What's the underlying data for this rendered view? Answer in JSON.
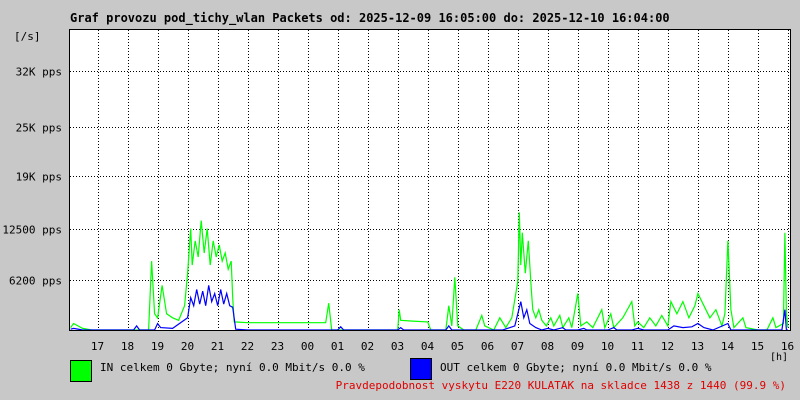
{
  "title": "Graf provozu pod_tichy_wlan Packets od: 2025-12-09 16:05:00 do: 2025-12-10 16:04:00",
  "legend": {
    "in_text": "IN celkem 0 Gbyte; nyní   0.0 Mbit/s 0.0 %",
    "out_text": "OUT celkem 0 Gbyte; nyní   0.0 Mbit/s 0.0 %",
    "in_color": "#00ff00",
    "out_color": "#0000ff"
  },
  "probability_text": "Pravdepodobnost vyskytu E220 KULATAK na skladce 1438 z 1440 (99.9 %)",
  "colors": {
    "background": "#c8c8c8",
    "plot": "#ffffff",
    "grid": "#000000",
    "probability": "#e00000"
  },
  "chart_data": {
    "type": "line",
    "ylabel": "[/s]",
    "xlabel": "[h]",
    "ylim": [
      0,
      37000
    ],
    "yticks": [
      {
        "value": 6200,
        "label": "6200 pps"
      },
      {
        "value": 12500,
        "label": "12500 pps"
      },
      {
        "value": 19000,
        "label": "19K pps"
      },
      {
        "value": 25000,
        "label": "25K pps"
      },
      {
        "value": 32000,
        "label": "32K pps"
      }
    ],
    "xlim": [
      16.08,
      40.07
    ],
    "xticks": [
      {
        "value": 17,
        "label": "17"
      },
      {
        "value": 18,
        "label": "18"
      },
      {
        "value": 19,
        "label": "19"
      },
      {
        "value": 20,
        "label": "20"
      },
      {
        "value": 21,
        "label": "21"
      },
      {
        "value": 22,
        "label": "22"
      },
      {
        "value": 23,
        "label": "23"
      },
      {
        "value": 24,
        "label": "00"
      },
      {
        "value": 25,
        "label": "01"
      },
      {
        "value": 26,
        "label": "02"
      },
      {
        "value": 27,
        "label": "03"
      },
      {
        "value": 28,
        "label": "04"
      },
      {
        "value": 29,
        "label": "05"
      },
      {
        "value": 30,
        "label": "06"
      },
      {
        "value": 31,
        "label": "07"
      },
      {
        "value": 32,
        "label": "08"
      },
      {
        "value": 33,
        "label": "09"
      },
      {
        "value": 34,
        "label": "10"
      },
      {
        "value": 35,
        "label": "11"
      },
      {
        "value": 36,
        "label": "12"
      },
      {
        "value": 37,
        "label": "13"
      },
      {
        "value": 38,
        "label": "14"
      },
      {
        "value": 39,
        "label": "15"
      },
      {
        "value": 40,
        "label": "16"
      }
    ],
    "grid": true,
    "series": [
      {
        "name": "IN",
        "color": "#00ff00",
        "points": [
          [
            16.1,
            300
          ],
          [
            16.2,
            800
          ],
          [
            16.5,
            200
          ],
          [
            16.8,
            0
          ],
          [
            17.5,
            0
          ],
          [
            18.2,
            0
          ],
          [
            18.7,
            0
          ],
          [
            18.8,
            8500
          ],
          [
            18.9,
            2000
          ],
          [
            19.0,
            1500
          ],
          [
            19.15,
            5500
          ],
          [
            19.3,
            2000
          ],
          [
            19.5,
            1500
          ],
          [
            19.7,
            1200
          ],
          [
            19.9,
            3000
          ],
          [
            20.0,
            7000
          ],
          [
            20.1,
            12500
          ],
          [
            20.15,
            8000
          ],
          [
            20.25,
            11000
          ],
          [
            20.35,
            9000
          ],
          [
            20.45,
            13500
          ],
          [
            20.55,
            9500
          ],
          [
            20.65,
            12500
          ],
          [
            20.75,
            8000
          ],
          [
            20.85,
            11000
          ],
          [
            20.95,
            9000
          ],
          [
            21.05,
            10500
          ],
          [
            21.15,
            8500
          ],
          [
            21.25,
            9500
          ],
          [
            21.35,
            7500
          ],
          [
            21.45,
            8500
          ],
          [
            21.5,
            4000
          ],
          [
            21.55,
            1000
          ],
          [
            22.0,
            900
          ],
          [
            23.0,
            900
          ],
          [
            24.0,
            900
          ],
          [
            24.6,
            900
          ],
          [
            24.7,
            3300
          ],
          [
            24.8,
            0
          ],
          [
            25.5,
            0
          ],
          [
            26.5,
            0
          ],
          [
            27.0,
            0
          ],
          [
            27.05,
            2500
          ],
          [
            27.1,
            1200
          ],
          [
            27.5,
            1100
          ],
          [
            28.0,
            1000
          ],
          [
            28.1,
            0
          ],
          [
            28.6,
            0
          ],
          [
            28.7,
            3000
          ],
          [
            28.8,
            500
          ],
          [
            28.9,
            6500
          ],
          [
            29.0,
            500
          ],
          [
            29.2,
            0
          ],
          [
            29.6,
            0
          ],
          [
            29.8,
            1800
          ],
          [
            29.9,
            500
          ],
          [
            30.2,
            0
          ],
          [
            30.4,
            1500
          ],
          [
            30.6,
            300
          ],
          [
            30.8,
            1500
          ],
          [
            31.0,
            6000
          ],
          [
            31.05,
            14500
          ],
          [
            31.1,
            8000
          ],
          [
            31.15,
            12000
          ],
          [
            31.25,
            7000
          ],
          [
            31.35,
            11000
          ],
          [
            31.45,
            5000
          ],
          [
            31.5,
            2500
          ],
          [
            31.6,
            1500
          ],
          [
            31.7,
            2500
          ],
          [
            31.8,
            1200
          ],
          [
            31.95,
            500
          ],
          [
            32.1,
            1500
          ],
          [
            32.2,
            500
          ],
          [
            32.4,
            1800
          ],
          [
            32.5,
            300
          ],
          [
            32.7,
            1500
          ],
          [
            32.8,
            300
          ],
          [
            33.0,
            4500
          ],
          [
            33.1,
            500
          ],
          [
            33.3,
            1000
          ],
          [
            33.5,
            300
          ],
          [
            33.8,
            2500
          ],
          [
            33.9,
            300
          ],
          [
            34.1,
            2000
          ],
          [
            34.2,
            300
          ],
          [
            34.5,
            1500
          ],
          [
            34.8,
            3500
          ],
          [
            34.9,
            500
          ],
          [
            35.0,
            1000
          ],
          [
            35.2,
            300
          ],
          [
            35.4,
            1500
          ],
          [
            35.6,
            500
          ],
          [
            35.8,
            1800
          ],
          [
            36.0,
            500
          ],
          [
            36.1,
            3500
          ],
          [
            36.3,
            2000
          ],
          [
            36.5,
            3500
          ],
          [
            36.7,
            1500
          ],
          [
            36.9,
            3000
          ],
          [
            37.0,
            4500
          ],
          [
            37.2,
            3000
          ],
          [
            37.4,
            1500
          ],
          [
            37.6,
            2500
          ],
          [
            37.8,
            500
          ],
          [
            37.9,
            2000
          ],
          [
            38.0,
            11000
          ],
          [
            38.1,
            2500
          ],
          [
            38.2,
            300
          ],
          [
            38.5,
            1500
          ],
          [
            38.6,
            300
          ],
          [
            39.0,
            0
          ],
          [
            39.3,
            0
          ],
          [
            39.5,
            1500
          ],
          [
            39.6,
            300
          ],
          [
            39.85,
            800
          ],
          [
            39.9,
            12000
          ],
          [
            39.95,
            2000
          ],
          [
            40.0,
            300
          ]
        ]
      },
      {
        "name": "OUT",
        "color": "#0000ff",
        "points": [
          [
            16.1,
            100
          ],
          [
            16.2,
            200
          ],
          [
            16.5,
            0
          ],
          [
            18.2,
            0
          ],
          [
            18.3,
            500
          ],
          [
            18.4,
            0
          ],
          [
            18.9,
            0
          ],
          [
            19.0,
            800
          ],
          [
            19.1,
            300
          ],
          [
            19.5,
            200
          ],
          [
            20.0,
            1500
          ],
          [
            20.1,
            4000
          ],
          [
            20.2,
            3000
          ],
          [
            20.3,
            5000
          ],
          [
            20.4,
            3200
          ],
          [
            20.5,
            4800
          ],
          [
            20.6,
            3000
          ],
          [
            20.7,
            5500
          ],
          [
            20.8,
            3500
          ],
          [
            20.9,
            4500
          ],
          [
            21.0,
            3000
          ],
          [
            21.1,
            5000
          ],
          [
            21.2,
            3200
          ],
          [
            21.3,
            4500
          ],
          [
            21.4,
            3000
          ],
          [
            21.5,
            2800
          ],
          [
            21.6,
            100
          ],
          [
            22.0,
            0
          ],
          [
            24.0,
            0
          ],
          [
            25.0,
            0
          ],
          [
            25.1,
            400
          ],
          [
            25.2,
            0
          ],
          [
            27.0,
            0
          ],
          [
            27.1,
            300
          ],
          [
            27.2,
            0
          ],
          [
            28.6,
            0
          ],
          [
            28.7,
            500
          ],
          [
            28.8,
            0
          ],
          [
            29.5,
            0
          ],
          [
            30.5,
            0
          ],
          [
            30.9,
            500
          ],
          [
            31.0,
            2000
          ],
          [
            31.1,
            3500
          ],
          [
            31.2,
            1500
          ],
          [
            31.3,
            2500
          ],
          [
            31.4,
            800
          ],
          [
            31.6,
            300
          ],
          [
            31.8,
            0
          ],
          [
            32.0,
            200
          ],
          [
            32.2,
            0
          ],
          [
            32.5,
            300
          ],
          [
            32.6,
            0
          ],
          [
            33.0,
            0
          ],
          [
            33.2,
            200
          ],
          [
            33.3,
            0
          ],
          [
            34.0,
            0
          ],
          [
            34.2,
            300
          ],
          [
            34.3,
            0
          ],
          [
            34.8,
            0
          ],
          [
            35.0,
            200
          ],
          [
            35.2,
            0
          ],
          [
            36.0,
            0
          ],
          [
            36.2,
            500
          ],
          [
            36.5,
            300
          ],
          [
            36.8,
            400
          ],
          [
            37.0,
            800
          ],
          [
            37.2,
            300
          ],
          [
            37.5,
            0
          ],
          [
            38.0,
            800
          ],
          [
            38.1,
            0
          ],
          [
            39.0,
            0
          ],
          [
            39.8,
            0
          ],
          [
            39.9,
            2500
          ],
          [
            39.95,
            0
          ],
          [
            40.0,
            0
          ]
        ]
      }
    ]
  }
}
